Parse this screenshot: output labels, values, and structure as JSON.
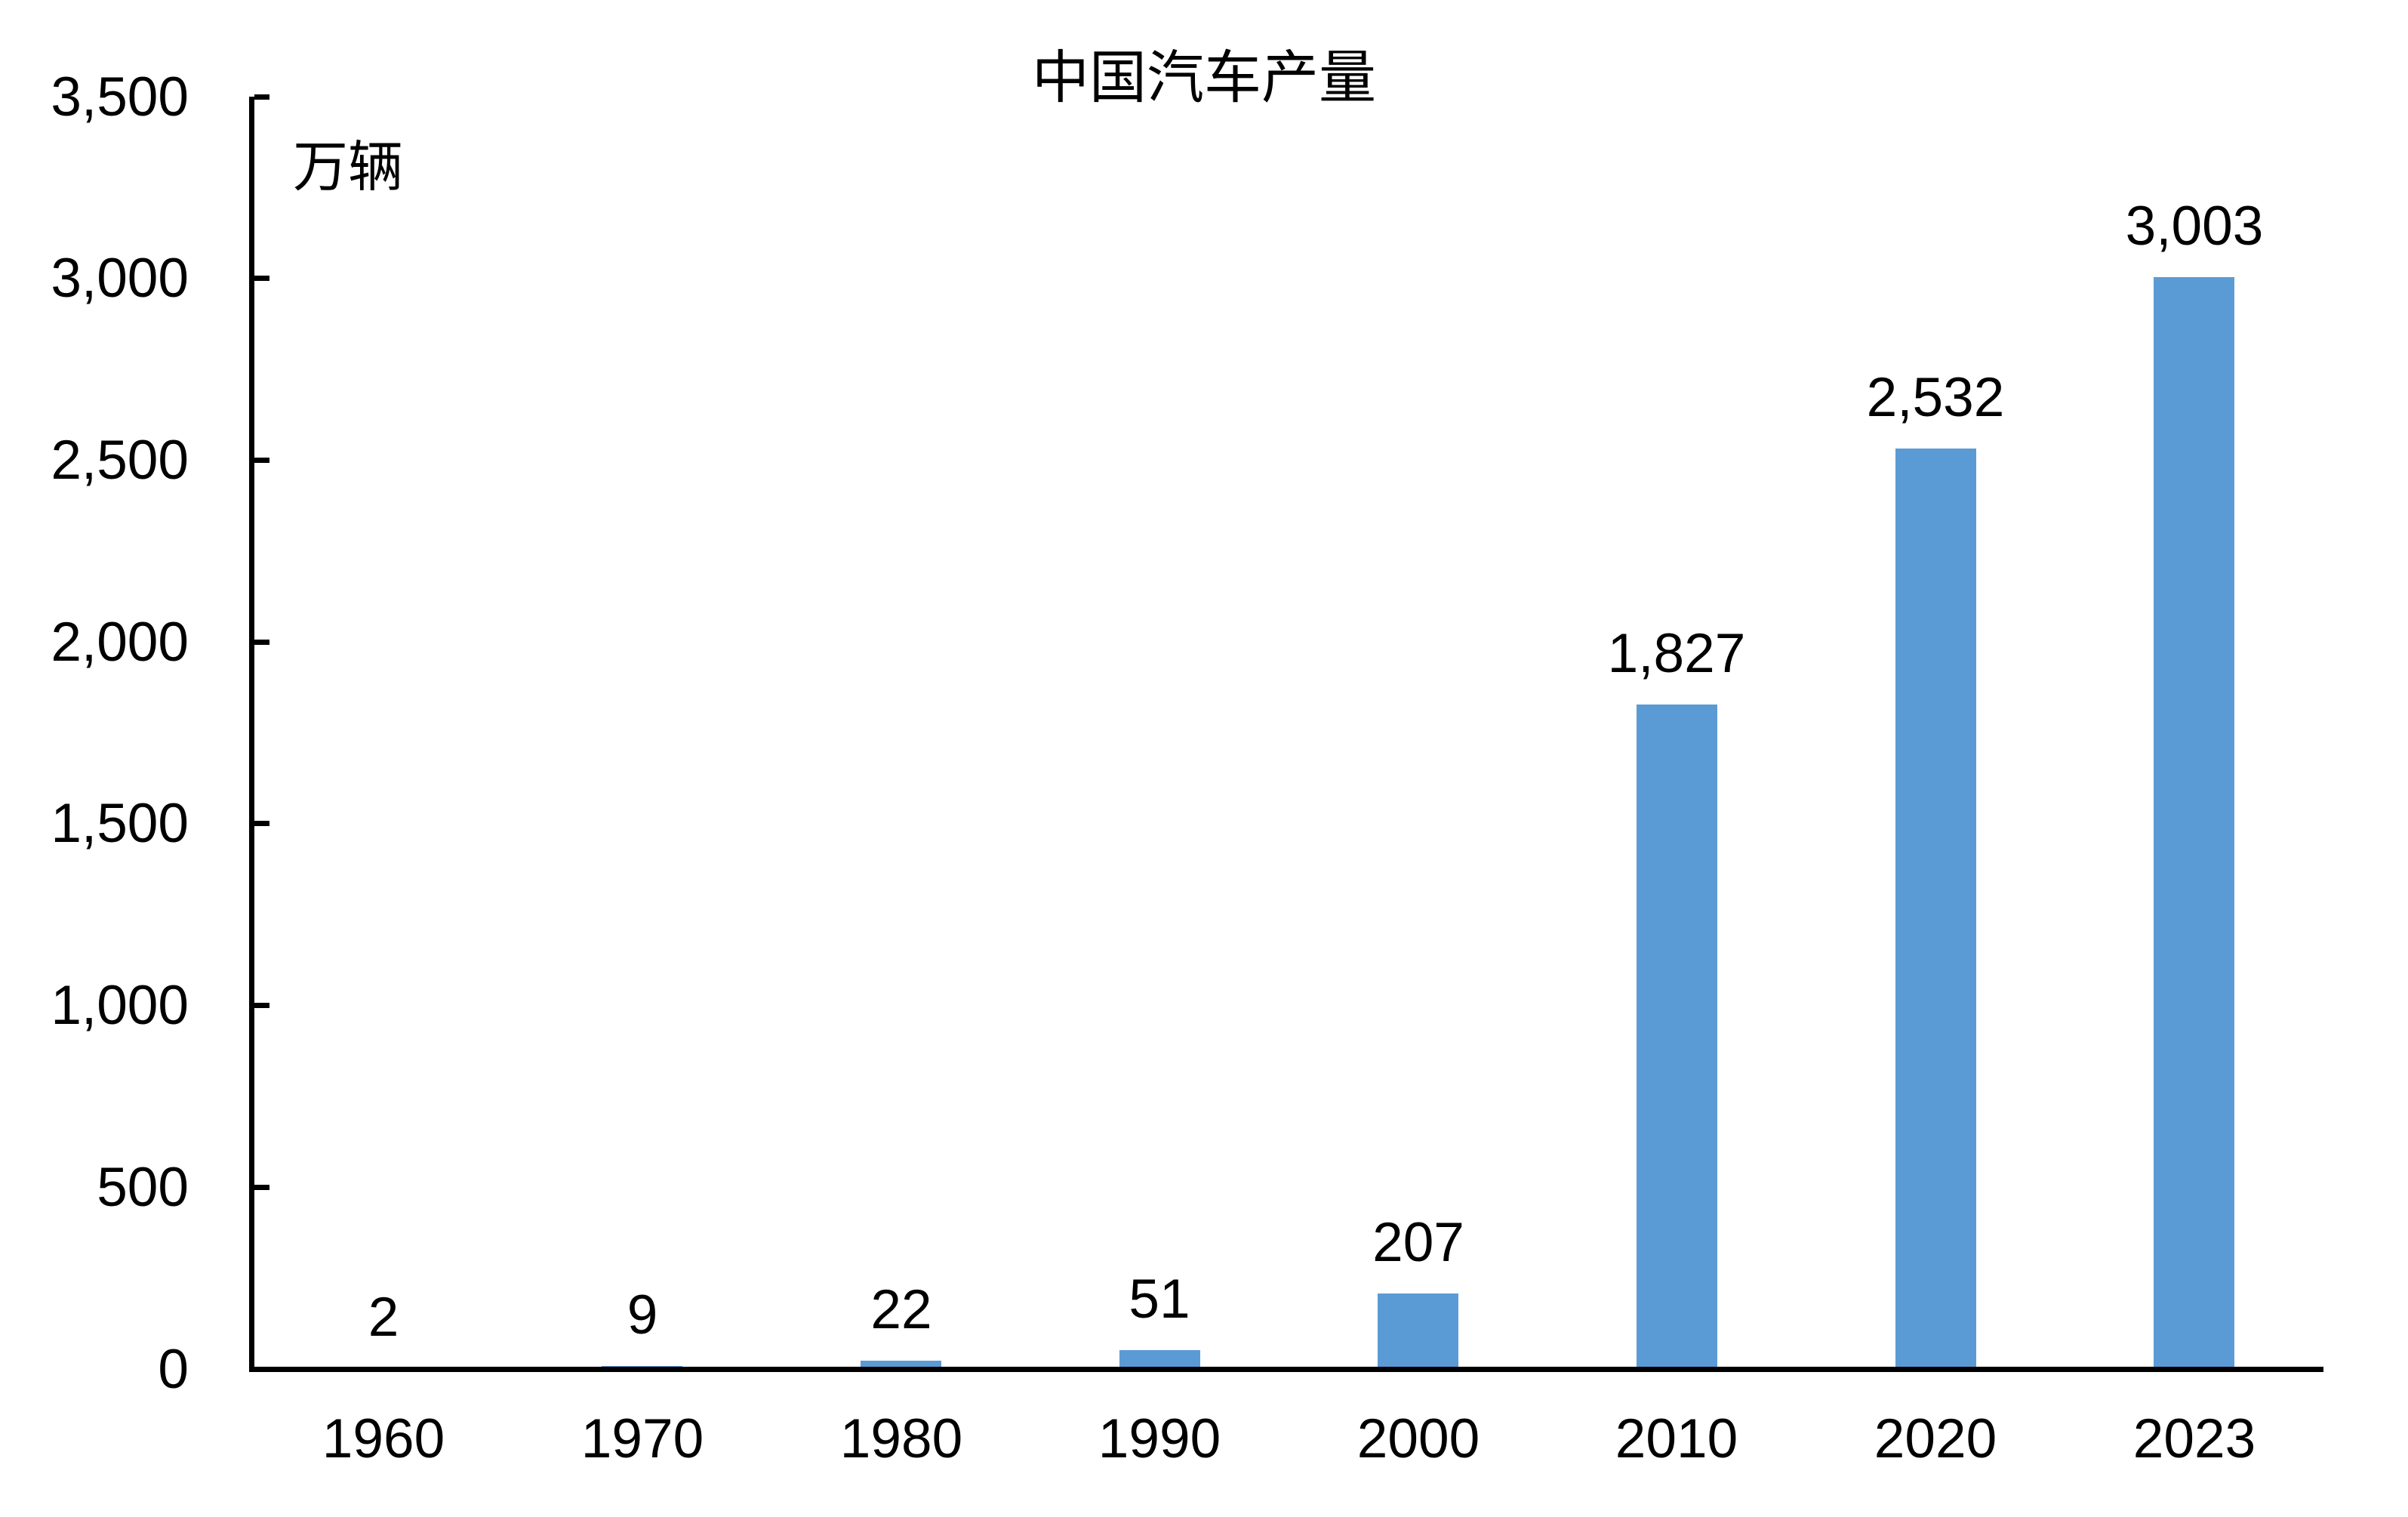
{
  "chart_data": {
    "type": "bar",
    "title": "中国汽车产量",
    "unit_label": "万辆",
    "categories": [
      "1960",
      "1970",
      "1980",
      "1990",
      "2000",
      "2010",
      "2020",
      "2023"
    ],
    "values": [
      2,
      9,
      22,
      51,
      207,
      1827,
      2532,
      3003
    ],
    "value_labels": [
      "2",
      "9",
      "22",
      "51",
      "207",
      "1,827",
      "2,532",
      "3,003"
    ],
    "xlabel": "",
    "ylabel": "万辆",
    "ylim": [
      0,
      3500
    ],
    "y_tick_values": [
      0,
      500,
      1000,
      1500,
      2000,
      2500,
      3000,
      3500
    ],
    "y_tick_labels": [
      "0",
      "500",
      "1,000",
      "1,500",
      "2,000",
      "2,500",
      "3,000",
      "3,500"
    ],
    "grid": "off",
    "legend": "none",
    "tick_style": "inside",
    "bar_color": "#5B9BD5",
    "axis_color": "#000000",
    "text_color": "#000000",
    "background_color": "#FFFFFF"
  }
}
